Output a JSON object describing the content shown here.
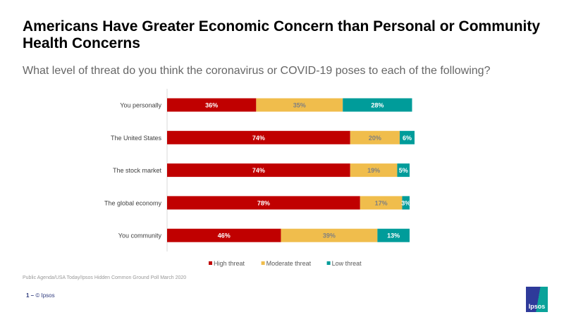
{
  "title": "Americans Have Greater Economic Concern than Personal or Community Health Concerns",
  "subtitle": "What level of threat do you think the coronavirus or COVID-19 poses to each of the following?",
  "source": "Public Agenda/USA Today/Ipsos Hidden Common Ground Poll March 2020",
  "footer": {
    "page": "1 –",
    "copyright": "© Ipsos",
    "logo_text": "Ipsos"
  },
  "chart_data": {
    "type": "bar",
    "orientation": "horizontal",
    "stacked": true,
    "categories": [
      "You personally",
      "The United States",
      "The stock market",
      "The global economy",
      "You community"
    ],
    "series": [
      {
        "name": "High threat",
        "color": "#c00000",
        "label_color": "#ffffff",
        "values": [
          36,
          74,
          74,
          78,
          46
        ]
      },
      {
        "name": "Moderate threat",
        "color": "#f0bd4c",
        "label_color": "#808080",
        "values": [
          35,
          20,
          19,
          17,
          39
        ]
      },
      {
        "name": "Low threat",
        "color": "#009c9a",
        "label_color": "#ffffff",
        "values": [
          28,
          6,
          5,
          3,
          13
        ]
      }
    ],
    "xlim": [
      0,
      100
    ],
    "legend": "bottom",
    "grid": false
  }
}
